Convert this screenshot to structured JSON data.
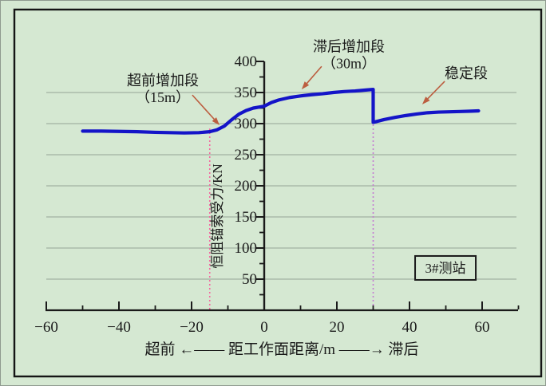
{
  "page": {
    "background_color": "#d5e8d2",
    "frame_color": "#151515"
  },
  "colors": {
    "grid": "#95a496",
    "axis": "#1a1a1a",
    "text": "#1a1a1a",
    "arrow": "#bc5e40",
    "curve": "#1414c8"
  },
  "chart_data": {
    "type": "line",
    "title": "",
    "xlabel": "超前 ←—— 距工作面距离/m ——→ 滞后",
    "ylabel": "恒阻锚索受力/KN",
    "xlim": [
      -60,
      70
    ],
    "ylim": [
      0,
      400
    ],
    "grid": "horizontal-only",
    "legend": "none",
    "x_major_ticks": [
      -60,
      -40,
      -20,
      0,
      20,
      40,
      60
    ],
    "x_minor_ticks": [
      -50,
      -30,
      -10,
      10,
      30,
      50,
      70
    ],
    "y_major_ticks": [
      50,
      100,
      150,
      200,
      250,
      300,
      350,
      400
    ],
    "y_minor_ticks": [
      25,
      75,
      125,
      175,
      225,
      275,
      325,
      375
    ],
    "y_gridlines": [
      50,
      100,
      150,
      200,
      250,
      300,
      350
    ],
    "series": [
      {
        "name": "恒阻锚索受力",
        "color": "#1414c8",
        "points": [
          [
            -50,
            288
          ],
          [
            -45,
            288
          ],
          [
            -40,
            287.5
          ],
          [
            -35,
            287
          ],
          [
            -30,
            286
          ],
          [
            -26,
            285.5
          ],
          [
            -22,
            285
          ],
          [
            -18,
            285.5
          ],
          [
            -15,
            287
          ],
          [
            -13,
            290
          ],
          [
            -11,
            296
          ],
          [
            -9,
            306
          ],
          [
            -7,
            315
          ],
          [
            -5,
            321
          ],
          [
            -3,
            325
          ],
          [
            0,
            328
          ],
          [
            2,
            334
          ],
          [
            4,
            338
          ],
          [
            7,
            342
          ],
          [
            10,
            344.5
          ],
          [
            13,
            346.5
          ],
          [
            16,
            348
          ],
          [
            19,
            350
          ],
          [
            22,
            351.5
          ],
          [
            25,
            352.5
          ],
          [
            28,
            354
          ],
          [
            30,
            355
          ],
          [
            30,
            302
          ],
          [
            33,
            306.5
          ],
          [
            36,
            310
          ],
          [
            39,
            313
          ],
          [
            42,
            315.5
          ],
          [
            45,
            317.5
          ],
          [
            48,
            318.5
          ],
          [
            51,
            319
          ],
          [
            54,
            319.5
          ],
          [
            57,
            320
          ],
          [
            59,
            320.5
          ]
        ]
      }
    ],
    "reference_lines": [
      {
        "x": -15,
        "top_value": 292,
        "color": "#f4679f",
        "style": "dotted"
      },
      {
        "x": 30,
        "top_value": 353,
        "color": "#c47cd2",
        "style": "dotted"
      }
    ],
    "annotations": [
      {
        "id": "lead-ahead-increase",
        "lines": [
          "超前增加段",
          "（15m）"
        ],
        "x": -27.9,
        "v": 369,
        "arrow": {
          "from": [
            -19.8,
            346
          ],
          "to": [
            -12.3,
            297.5
          ]
        }
      },
      {
        "id": "lag-behind-increase",
        "lines": [
          "滞后增加段",
          "（30m）"
        ],
        "x": 23.3,
        "v": 424,
        "arrow": {
          "from": [
            15.8,
            392
          ],
          "to": [
            10.3,
            355
          ]
        }
      },
      {
        "id": "stable-stage",
        "lines": [
          "稳定段"
        ],
        "x": 55.6,
        "v": 381,
        "arrow": {
          "from": [
            49.7,
            368
          ],
          "to": [
            43.5,
            331
          ]
        }
      }
    ],
    "station_box": {
      "label": "3#测站",
      "x": 49.9,
      "v": 68,
      "w": 76,
      "h": 30
    }
  }
}
